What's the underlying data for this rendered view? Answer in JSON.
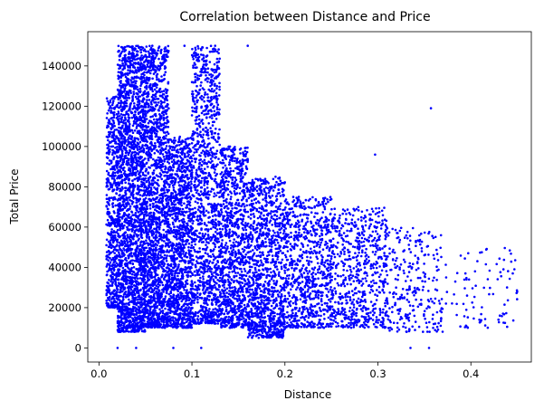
{
  "chart_data": {
    "type": "scatter",
    "title": "Correlation between Distance and Price",
    "xlabel": "Distance",
    "ylabel": "Total Price",
    "xlim": [
      -0.012,
      0.465
    ],
    "ylim": [
      -7000,
      157000
    ],
    "x_ticks": [
      0.0,
      0.1,
      0.2,
      0.3,
      0.4
    ],
    "x_tick_labels": [
      "0.0",
      "0.1",
      "0.2",
      "0.3",
      "0.4"
    ],
    "y_ticks": [
      0,
      20000,
      40000,
      60000,
      80000,
      100000,
      120000,
      140000
    ],
    "y_tick_labels": [
      "0",
      "20000",
      "40000",
      "60000",
      "80000",
      "100000",
      "120000",
      "140000"
    ],
    "grid": false,
    "marker_color": "#0000ff",
    "point_clusters": [
      {
        "x_range": [
          0.008,
          0.02
        ],
        "y_range": [
          20000,
          125000
        ],
        "density": 500
      },
      {
        "x_range": [
          0.02,
          0.05
        ],
        "y_range": [
          8000,
          150000
        ],
        "density": 2200
      },
      {
        "x_range": [
          0.05,
          0.075
        ],
        "y_range": [
          10000,
          150000
        ],
        "density": 1600
      },
      {
        "x_range": [
          0.075,
          0.1
        ],
        "y_range": [
          10000,
          105000
        ],
        "density": 1100
      },
      {
        "x_range": [
          0.1,
          0.13
        ],
        "y_range": [
          12000,
          150000
        ],
        "density": 1200
      },
      {
        "x_range": [
          0.13,
          0.16
        ],
        "y_range": [
          10000,
          100000
        ],
        "density": 1000
      },
      {
        "x_range": [
          0.16,
          0.2
        ],
        "y_range": [
          5000,
          85000
        ],
        "density": 1100
      },
      {
        "x_range": [
          0.2,
          0.25
        ],
        "y_range": [
          10000,
          75000
        ],
        "density": 800
      },
      {
        "x_range": [
          0.25,
          0.31
        ],
        "y_range": [
          10000,
          70000
        ],
        "density": 650
      },
      {
        "x_range": [
          0.31,
          0.37
        ],
        "y_range": [
          8000,
          60000
        ],
        "density": 260
      },
      {
        "x_range": [
          0.37,
          0.45
        ],
        "y_range": [
          10000,
          50000
        ],
        "density": 90
      }
    ],
    "outliers": [
      {
        "x": 0.357,
        "y": 119000
      },
      {
        "x": 0.297,
        "y": 96000
      },
      {
        "x": 0.16,
        "y": 150000
      },
      {
        "x": 0.125,
        "y": 150000
      },
      {
        "x": 0.092,
        "y": 150000
      },
      {
        "x": 0.02,
        "y": 0
      },
      {
        "x": 0.04,
        "y": 0
      },
      {
        "x": 0.08,
        "y": 0
      },
      {
        "x": 0.11,
        "y": 0
      },
      {
        "x": 0.335,
        "y": 0
      },
      {
        "x": 0.355,
        "y": 0
      },
      {
        "x": 0.435,
        "y": 39000
      },
      {
        "x": 0.445,
        "y": 37000
      }
    ]
  }
}
